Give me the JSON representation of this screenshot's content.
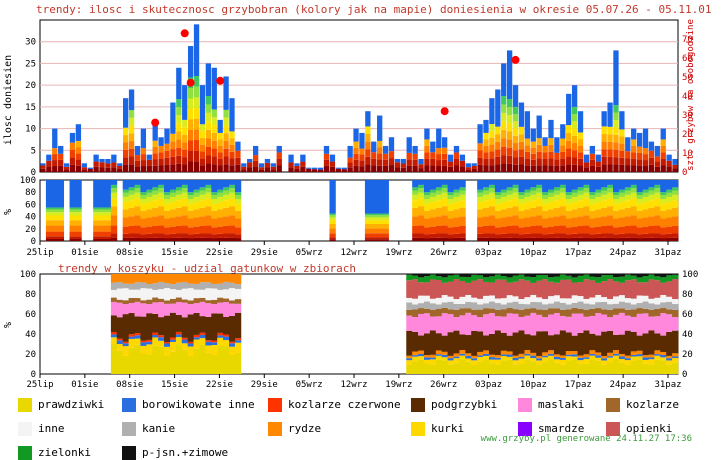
{
  "title_left": "trendy: ilosc i skutecznosc grzybobran (kolory jak na mapie)",
  "title_right": "doniesienia w okresie 05.07.26 - 05.11.01",
  "subtitle2": "trendy w koszyku - udzial gatunkow w zbiorach",
  "footer": "www.grzyby.pl generowane 24.11.27 17:36",
  "colors": {
    "title": "#c0392b",
    "grid": "#e8b4b4",
    "axis_red": "#cc0000",
    "green_footer": "#3a9a3a"
  },
  "chart_data": [
    {
      "type": "bar",
      "ylabel": "ilosc doniesien",
      "ylabel_right": "szt. grzybow na osobogodzine",
      "ylim": [
        0,
        35
      ],
      "ylim_right": [
        0,
        80
      ],
      "yticks": [
        0,
        5,
        10,
        15,
        20,
        25,
        30
      ],
      "yticks_right": [
        0,
        10,
        20,
        30,
        40,
        50,
        60,
        70
      ],
      "xticks": [
        "25lip",
        "01sie",
        "08sie",
        "15sie",
        "22sie",
        "29sie",
        "05wrz",
        "12wrz",
        "19wrz",
        "26wrz",
        "03paz",
        "10paz",
        "17paz",
        "24paz",
        "31paz"
      ],
      "values": [
        2,
        4,
        10,
        6,
        2,
        9,
        11,
        2,
        1,
        4,
        3,
        3,
        4,
        2,
        17,
        19,
        6,
        10,
        4,
        12,
        8,
        10,
        16,
        24,
        20,
        29,
        34,
        20,
        25,
        24,
        12,
        22,
        17,
        7,
        2,
        3,
        6,
        2,
        3,
        2,
        6,
        0,
        4,
        2,
        4,
        1,
        1,
        1,
        6,
        4,
        1,
        1,
        6,
        10,
        9,
        14,
        7,
        13,
        6,
        8,
        3,
        3,
        8,
        6,
        3,
        10,
        7,
        10,
        8,
        4,
        6,
        4,
        2,
        2,
        11,
        12,
        17,
        19,
        25,
        28,
        20,
        16,
        14,
        10,
        13,
        8,
        12,
        8,
        11,
        18,
        20,
        14,
        4,
        6,
        4,
        14,
        16,
        28,
        14,
        8,
        10,
        9,
        10,
        7,
        6,
        10,
        4,
        3
      ],
      "markers": [
        {
          "x": 19,
          "y": 26
        },
        {
          "x": 24,
          "y": 73
        },
        {
          "x": 25,
          "y": 47
        },
        {
          "x": 30,
          "y": 48
        },
        {
          "x": 68,
          "y": 32
        },
        {
          "x": 80,
          "y": 59
        }
      ]
    },
    {
      "type": "area",
      "ylabel": "%",
      "ylim": [
        0,
        100
      ],
      "yticks": [
        0,
        20,
        40,
        60,
        80,
        100
      ]
    },
    {
      "type": "area",
      "title": "trendy w koszyku - udzial gatunkow w zbiorach",
      "ylabel": "%",
      "ylim": [
        0,
        100
      ],
      "yticks": [
        0,
        20,
        40,
        60,
        80,
        100
      ],
      "xticks": [
        "25lip",
        "01sie",
        "08sie",
        "15sie",
        "22sie",
        "29sie",
        "05wrz",
        "12wrz",
        "19wrz",
        "26wrz",
        "03paz",
        "10paz",
        "17paz",
        "24paz",
        "31paz"
      ]
    }
  ],
  "legend": [
    {
      "label": "prawdziwki",
      "color": "#e8d800"
    },
    {
      "label": "borowikowate inne",
      "color": "#2a6fe0"
    },
    {
      "label": "kozlarze czerwone",
      "color": "#ff3300"
    },
    {
      "label": "podgrzybki",
      "color": "#5a2a00"
    },
    {
      "label": "maslaki",
      "color": "#ff88dd"
    },
    {
      "label": "kozlarze",
      "color": "#a0662a"
    },
    {
      "label": "inne",
      "color": "#f4f4f4"
    },
    {
      "label": "kanie",
      "color": "#b0b0b0"
    },
    {
      "label": "rydze",
      "color": "#ff8800"
    },
    {
      "label": "kurki",
      "color": "#ffd800"
    },
    {
      "label": "smardze",
      "color": "#8800ff"
    },
    {
      "label": "opienki",
      "color": "#cc5555"
    },
    {
      "label": "zielonki",
      "color": "#119922"
    },
    {
      "label": "p-jsn.+zimowe",
      "color": "#111111"
    }
  ]
}
